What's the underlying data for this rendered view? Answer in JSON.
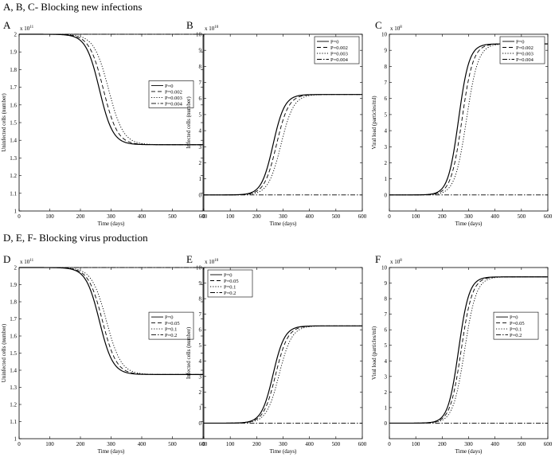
{
  "sections": [
    {
      "title": "A, B, C- Blocking new infections"
    },
    {
      "title": "D, E, F- Blocking virus production"
    }
  ],
  "chart_data": [
    {
      "panel": "A",
      "type": "line",
      "xlabel": "Time (days)",
      "ylabel": "Uninfected cells (number)",
      "exponent_label": "x 10",
      "exponent": "11",
      "xlim": [
        0,
        600
      ],
      "ylim": [
        1.0,
        2.0
      ],
      "xticks": [
        0,
        100,
        200,
        300,
        400,
        500,
        600
      ],
      "yticks": [
        1,
        1.1,
        1.2,
        1.3,
        1.4,
        1.5,
        1.6,
        1.7,
        1.8,
        1.9,
        2
      ],
      "legend_position": "right-middle",
      "curve": {
        "kind": "decrease",
        "start": 2.0,
        "end": 1.375
      },
      "series": [
        {
          "name": "P=0",
          "style": "solid",
          "midpoint_day": 262,
          "width_days": 22,
          "flat": false
        },
        {
          "name": "P=0.002",
          "style": "dashed",
          "midpoint_day": 275,
          "width_days": 23,
          "flat": false
        },
        {
          "name": "P=0.003",
          "style": "dotted",
          "midpoint_day": 292,
          "width_days": 24,
          "flat": false
        },
        {
          "name": "P=0.004",
          "style": "dashdot",
          "midpoint_day": 0,
          "width_days": 1,
          "flat": true
        }
      ]
    },
    {
      "panel": "B",
      "type": "line",
      "xlabel": "Time (days)",
      "ylabel": "Infected cells (number)",
      "exponent_label": "x 10",
      "exponent": "10",
      "xlim": [
        0,
        600
      ],
      "ylim": [
        -1,
        10
      ],
      "xticks": [
        0,
        100,
        200,
        300,
        400,
        500,
        600
      ],
      "yticks": [
        0,
        1,
        2,
        3,
        4,
        5,
        6,
        7,
        8,
        9,
        10
      ],
      "legend_position": "top-right",
      "curve": {
        "kind": "increase",
        "start": 0,
        "end": 6.25
      },
      "series": [
        {
          "name": "P=0",
          "style": "solid",
          "midpoint_day": 262,
          "width_days": 22,
          "flat": false
        },
        {
          "name": "P=0.002",
          "style": "dashed",
          "midpoint_day": 275,
          "width_days": 23,
          "flat": false
        },
        {
          "name": "P=0.003",
          "style": "dotted",
          "midpoint_day": 292,
          "width_days": 24,
          "flat": false
        },
        {
          "name": "P=0.004",
          "style": "dashdot",
          "midpoint_day": 0,
          "width_days": 1,
          "flat": true
        }
      ]
    },
    {
      "panel": "C",
      "type": "line",
      "xlabel": "Time (days)",
      "ylabel": "Viral load (particles/ml)",
      "exponent_label": "x 10",
      "exponent": "8",
      "xlim": [
        0,
        600
      ],
      "ylim": [
        -1,
        10
      ],
      "xticks": [
        0,
        100,
        200,
        300,
        400,
        500,
        600
      ],
      "yticks": [
        0,
        1,
        2,
        3,
        4,
        5,
        6,
        7,
        8,
        9,
        10
      ],
      "legend_position": "top-right",
      "curve": {
        "kind": "increase",
        "start": 0,
        "end": 9.4
      },
      "series": [
        {
          "name": "P=0",
          "style": "solid",
          "midpoint_day": 262,
          "width_days": 20,
          "flat": false
        },
        {
          "name": "P=0.002",
          "style": "dashed",
          "midpoint_day": 275,
          "width_days": 21,
          "flat": false
        },
        {
          "name": "P=0.003",
          "style": "dotted",
          "midpoint_day": 292,
          "width_days": 22,
          "flat": false
        },
        {
          "name": "P=0.004",
          "style": "dashdot",
          "midpoint_day": 0,
          "width_days": 1,
          "flat": true
        }
      ]
    },
    {
      "panel": "D",
      "type": "line",
      "xlabel": "Time (days)",
      "ylabel": "Uninfected cells (number)",
      "exponent_label": "x 10",
      "exponent": "11",
      "xlim": [
        0,
        600
      ],
      "ylim": [
        1.0,
        2.0
      ],
      "xticks": [
        0,
        100,
        200,
        300,
        400,
        500,
        600
      ],
      "yticks": [
        1,
        1.1,
        1.2,
        1.3,
        1.4,
        1.5,
        1.6,
        1.7,
        1.8,
        1.9,
        2
      ],
      "legend_position": "right-middle",
      "curve": {
        "kind": "decrease",
        "start": 2.0,
        "end": 1.375
      },
      "series": [
        {
          "name": "P=0",
          "style": "solid",
          "midpoint_day": 262,
          "width_days": 22,
          "flat": false
        },
        {
          "name": "P=0.05",
          "style": "dashed",
          "midpoint_day": 272,
          "width_days": 23,
          "flat": false
        },
        {
          "name": "P=0.1",
          "style": "dotted",
          "midpoint_day": 285,
          "width_days": 24,
          "flat": false
        },
        {
          "name": "P=0.2",
          "style": "dashdot",
          "midpoint_day": 0,
          "width_days": 1,
          "flat": true
        }
      ]
    },
    {
      "panel": "E",
      "type": "line",
      "xlabel": "Time (days)",
      "ylabel": "Infected cells (number)",
      "exponent_label": "x 10",
      "exponent": "10",
      "xlim": [
        0,
        600
      ],
      "ylim": [
        -1,
        10
      ],
      "xticks": [
        0,
        100,
        200,
        300,
        400,
        500,
        600
      ],
      "yticks": [
        0,
        1,
        2,
        3,
        4,
        5,
        6,
        7,
        8,
        9,
        10
      ],
      "legend_position": "top-left",
      "curve": {
        "kind": "increase",
        "start": 0,
        "end": 6.25
      },
      "series": [
        {
          "name": "P=0",
          "style": "solid",
          "midpoint_day": 262,
          "width_days": 22,
          "flat": false
        },
        {
          "name": "P=0.05",
          "style": "dashed",
          "midpoint_day": 272,
          "width_days": 23,
          "flat": false
        },
        {
          "name": "P=0.1",
          "style": "dotted",
          "midpoint_day": 285,
          "width_days": 24,
          "flat": false
        },
        {
          "name": "P=0.2",
          "style": "dashdot",
          "midpoint_day": 0,
          "width_days": 1,
          "flat": true
        }
      ]
    },
    {
      "panel": "F",
      "type": "line",
      "xlabel": "Time (days)",
      "ylabel": "Viral load (particles/ml)",
      "exponent_label": "x 10",
      "exponent": "8",
      "xlim": [
        0,
        600
      ],
      "ylim": [
        -1,
        10
      ],
      "xticks": [
        0,
        100,
        200,
        300,
        400,
        500,
        600
      ],
      "yticks": [
        0,
        1,
        2,
        3,
        4,
        5,
        6,
        7,
        8,
        9,
        10
      ],
      "legend_position": "right-middle",
      "curve": {
        "kind": "increase",
        "start": 0,
        "end": 9.4
      },
      "series": [
        {
          "name": "P=0",
          "style": "solid",
          "midpoint_day": 262,
          "width_days": 20,
          "flat": false
        },
        {
          "name": "P=0.05",
          "style": "dashed",
          "midpoint_day": 272,
          "width_days": 21,
          "flat": false
        },
        {
          "name": "P=0.1",
          "style": "dotted",
          "midpoint_day": 285,
          "width_days": 22,
          "flat": false
        },
        {
          "name": "P=0.2",
          "style": "dashdot",
          "midpoint_day": 0,
          "width_days": 1,
          "flat": true
        }
      ]
    }
  ]
}
